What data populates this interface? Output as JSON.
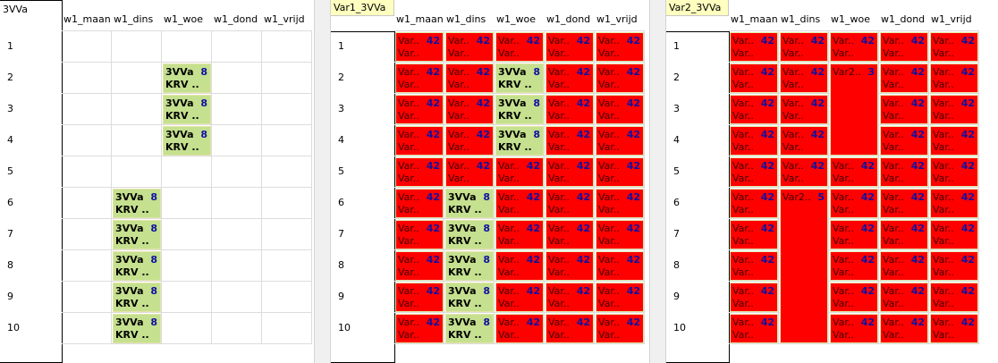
{
  "panels": [
    {
      "title": "3VVa",
      "columns": [
        "w1_maan",
        "w1_dins",
        "w1_woe",
        "w1_dond",
        "w1_vrijd"
      ],
      "rows": [
        {
          "label": 1,
          "cells": [
            null,
            null,
            null,
            null,
            null
          ]
        },
        {
          "label": 2,
          "cells": [
            null,
            null,
            {
              "top": "3VVa",
              "num": 8,
              "bottom": "KRV ..",
              "color": "#c5e08e"
            },
            null,
            null
          ]
        },
        {
          "label": 3,
          "cells": [
            null,
            null,
            {
              "top": "3VVa",
              "num": 8,
              "bottom": "KRV ..",
              "color": "#c5e08e"
            },
            null,
            null
          ]
        },
        {
          "label": 4,
          "cells": [
            null,
            null,
            {
              "top": "3VVa",
              "num": 8,
              "bottom": "KRV ..",
              "color": "#c5e08e"
            },
            null,
            null
          ]
        },
        {
          "label": 5,
          "cells": [
            null,
            null,
            null,
            null,
            null
          ]
        },
        {
          "label": 6,
          "cells": [
            null,
            {
              "top": "3VVa",
              "num": 8,
              "bottom": "KRV ..",
              "color": "#c5e08e"
            },
            null,
            null,
            null
          ]
        },
        {
          "label": 7,
          "cells": [
            null,
            {
              "top": "3VVa",
              "num": 8,
              "bottom": "KRV ..",
              "color": "#c5e08e"
            },
            null,
            null,
            null
          ]
        },
        {
          "label": 8,
          "cells": [
            null,
            {
              "top": "3VVa",
              "num": 8,
              "bottom": "KRV ..",
              "color": "#c5e08e"
            },
            null,
            null,
            null
          ]
        },
        {
          "label": 9,
          "cells": [
            null,
            {
              "top": "3VVa",
              "num": 8,
              "bottom": "KRV ..",
              "color": "#c5e08e"
            },
            null,
            null,
            null
          ]
        },
        {
          "label": 10,
          "cells": [
            null,
            {
              "top": "3VVa",
              "num": 8,
              "bottom": "KRV ..",
              "color": "#c5e08e"
            },
            null,
            null,
            null
          ]
        }
      ]
    },
    {
      "title": "Var1_3VVa",
      "columns": [
        "w1_maan",
        "w1_dins",
        "w1_woe",
        "w1_dond",
        "w1_vrijd"
      ],
      "rows": [
        {
          "label": 1,
          "cells": [
            {
              "top": "Var..",
              "num": 42,
              "bottom": "Var..",
              "color": "#ff0000"
            },
            {
              "top": "Var..",
              "num": 42,
              "bottom": "Var..",
              "color": "#ff0000"
            },
            {
              "top": "Var..",
              "num": 42,
              "bottom": "Var..",
              "color": "#ff0000"
            },
            {
              "top": "Var..",
              "num": 42,
              "bottom": "Var..",
              "color": "#ff0000"
            },
            {
              "top": "Var..",
              "num": 42,
              "bottom": "Var..",
              "color": "#ff0000"
            }
          ]
        },
        {
          "label": 2,
          "cells": [
            {
              "top": "Var..",
              "num": 42,
              "bottom": "Var..",
              "color": "#ff0000"
            },
            {
              "top": "Var..",
              "num": 42,
              "bottom": "Var..",
              "color": "#ff0000"
            },
            {
              "top": "3VVa",
              "num": 8,
              "bottom": "KRV ..",
              "color": "#c5e08e"
            },
            {
              "top": "Var..",
              "num": 42,
              "bottom": "Var..",
              "color": "#ff0000"
            },
            {
              "top": "Var..",
              "num": 42,
              "bottom": "Var..",
              "color": "#ff0000"
            }
          ]
        },
        {
          "label": 3,
          "cells": [
            {
              "top": "Var..",
              "num": 42,
              "bottom": "Var..",
              "color": "#ff0000"
            },
            {
              "top": "Var..",
              "num": 42,
              "bottom": "Var..",
              "color": "#ff0000"
            },
            {
              "top": "3VVa",
              "num": 8,
              "bottom": "KRV ..",
              "color": "#c5e08e"
            },
            {
              "top": "Var..",
              "num": 42,
              "bottom": "Var..",
              "color": "#ff0000"
            },
            {
              "top": "Var..",
              "num": 42,
              "bottom": "Var..",
              "color": "#ff0000"
            }
          ]
        },
        {
          "label": 4,
          "cells": [
            {
              "top": "Var..",
              "num": 42,
              "bottom": "Var..",
              "color": "#ff0000"
            },
            {
              "top": "Var..",
              "num": 42,
              "bottom": "Var..",
              "color": "#ff0000"
            },
            {
              "top": "3VVa",
              "num": 8,
              "bottom": "KRV ..",
              "color": "#c5e08e"
            },
            {
              "top": "Var..",
              "num": 42,
              "bottom": "Var..",
              "color": "#ff0000"
            },
            {
              "top": "Var..",
              "num": 42,
              "bottom": "Var..",
              "color": "#ff0000"
            }
          ]
        },
        {
          "label": 5,
          "cells": [
            {
              "top": "Var..",
              "num": 42,
              "bottom": "Var..",
              "color": "#ff0000"
            },
            {
              "top": "Var..",
              "num": 42,
              "bottom": "Var..",
              "color": "#ff0000"
            },
            {
              "top": "Var..",
              "num": 42,
              "bottom": "Var..",
              "color": "#ff0000"
            },
            {
              "top": "Var..",
              "num": 42,
              "bottom": "Var..",
              "color": "#ff0000"
            },
            {
              "top": "Var..",
              "num": 42,
              "bottom": "Var..",
              "color": "#ff0000"
            }
          ]
        },
        {
          "label": 6,
          "cells": [
            {
              "top": "Var..",
              "num": 42,
              "bottom": "Var..",
              "color": "#ff0000"
            },
            {
              "top": "3VVa",
              "num": 8,
              "bottom": "KRV ..",
              "color": "#c5e08e"
            },
            {
              "top": "Var..",
              "num": 42,
              "bottom": "Var..",
              "color": "#ff0000"
            },
            {
              "top": "Var..",
              "num": 42,
              "bottom": "Var..",
              "color": "#ff0000"
            },
            {
              "top": "Var..",
              "num": 42,
              "bottom": "Var..",
              "color": "#ff0000"
            }
          ]
        },
        {
          "label": 7,
          "cells": [
            {
              "top": "Var..",
              "num": 42,
              "bottom": "Var..",
              "color": "#ff0000"
            },
            {
              "top": "3VVa",
              "num": 8,
              "bottom": "KRV ..",
              "color": "#c5e08e"
            },
            {
              "top": "Var..",
              "num": 42,
              "bottom": "Var..",
              "color": "#ff0000"
            },
            {
              "top": "Var..",
              "num": 42,
              "bottom": "Var..",
              "color": "#ff0000"
            },
            {
              "top": "Var..",
              "num": 42,
              "bottom": "Var..",
              "color": "#ff0000"
            }
          ]
        },
        {
          "label": 8,
          "cells": [
            {
              "top": "Var..",
              "num": 42,
              "bottom": "Var..",
              "color": "#ff0000"
            },
            {
              "top": "3VVa",
              "num": 8,
              "bottom": "KRV ..",
              "color": "#c5e08e"
            },
            {
              "top": "Var..",
              "num": 42,
              "bottom": "Var..",
              "color": "#ff0000"
            },
            {
              "top": "Var..",
              "num": 42,
              "bottom": "Var..",
              "color": "#ff0000"
            },
            {
              "top": "Var..",
              "num": 42,
              "bottom": "Var..",
              "color": "#ff0000"
            }
          ]
        },
        {
          "label": 9,
          "cells": [
            {
              "top": "Var..",
              "num": 42,
              "bottom": "Var..",
              "color": "#ff0000"
            },
            {
              "top": "3VVa",
              "num": 8,
              "bottom": "KRV ..",
              "color": "#c5e08e"
            },
            {
              "top": "Var..",
              "num": 42,
              "bottom": "Var..",
              "color": "#ff0000"
            },
            {
              "top": "Var..",
              "num": 42,
              "bottom": "Var..",
              "color": "#ff0000"
            },
            {
              "top": "Var..",
              "num": 42,
              "bottom": "Var..",
              "color": "#ff0000"
            }
          ]
        },
        {
          "label": 10,
          "cells": [
            {
              "top": "Var..",
              "num": 42,
              "bottom": "Var..",
              "color": "#ff0000"
            },
            {
              "top": "3VVa",
              "num": 8,
              "bottom": "KRV ..",
              "color": "#c5e08e"
            },
            {
              "top": "Var..",
              "num": 42,
              "bottom": "Var..",
              "color": "#ff0000"
            },
            {
              "top": "Var..",
              "num": 42,
              "bottom": "Var..",
              "color": "#ff0000"
            },
            {
              "top": "Var..",
              "num": 42,
              "bottom": "Var..",
              "color": "#ff0000"
            }
          ]
        }
      ]
    },
    {
      "title": "Var2_3VVa",
      "columns": [
        "w1_maan",
        "w1_dins",
        "w1_woe",
        "w1_dond",
        "w1_vrijd"
      ],
      "rows": [
        {
          "label": 1,
          "cells": [
            {
              "top": "Var..",
              "num": 42,
              "bottom": "Var..",
              "color": "#ff0000"
            },
            {
              "top": "Var..",
              "num": 42,
              "bottom": "Var..",
              "color": "#ff0000"
            },
            {
              "top": "Var..",
              "num": 42,
              "bottom": "Var..",
              "color": "#ff0000"
            },
            {
              "top": "Var..",
              "num": 42,
              "bottom": "Var..",
              "color": "#ff0000"
            },
            {
              "top": "Var..",
              "num": 42,
              "bottom": "Var..",
              "color": "#ff0000"
            }
          ]
        },
        {
          "label": 2,
          "cells": [
            {
              "top": "Var..",
              "num": 42,
              "bottom": "Var..",
              "color": "#ff0000"
            },
            {
              "top": "Var..",
              "num": 42,
              "bottom": "Var..",
              "color": "#ff0000"
            },
            {
              "top": "Var2..",
              "num": 3,
              "rowspan": 3,
              "color": "#ff0000"
            },
            {
              "top": "Var..",
              "num": 42,
              "bottom": "Var..",
              "color": "#ff0000"
            },
            {
              "top": "Var..",
              "num": 42,
              "bottom": "Var..",
              "color": "#ff0000"
            }
          ]
        },
        {
          "label": 3,
          "cells": [
            {
              "top": "Var..",
              "num": 42,
              "bottom": "Var..",
              "color": "#ff0000"
            },
            {
              "top": "Var..",
              "num": 42,
              "bottom": "Var..",
              "color": "#ff0000"
            },
            null,
            {
              "top": "Var..",
              "num": 42,
              "bottom": "Var..",
              "color": "#ff0000"
            },
            {
              "top": "Var..",
              "num": 42,
              "bottom": "Var..",
              "color": "#ff0000"
            }
          ]
        },
        {
          "label": 4,
          "cells": [
            {
              "top": "Var..",
              "num": 42,
              "bottom": "Var..",
              "color": "#ff0000"
            },
            {
              "top": "Var..",
              "num": 42,
              "bottom": "Var..",
              "color": "#ff0000"
            },
            null,
            {
              "top": "Var..",
              "num": 42,
              "bottom": "Var..",
              "color": "#ff0000"
            },
            {
              "top": "Var..",
              "num": 42,
              "bottom": "Var..",
              "color": "#ff0000"
            }
          ]
        },
        {
          "label": 5,
          "cells": [
            {
              "top": "Var..",
              "num": 42,
              "bottom": "Var..",
              "color": "#ff0000"
            },
            {
              "top": "Var..",
              "num": 42,
              "bottom": "Var..",
              "color": "#ff0000"
            },
            {
              "top": "Var..",
              "num": 42,
              "bottom": "Var..",
              "color": "#ff0000"
            },
            {
              "top": "Var..",
              "num": 42,
              "bottom": "Var..",
              "color": "#ff0000"
            },
            {
              "top": "Var..",
              "num": 42,
              "bottom": "Var..",
              "color": "#ff0000"
            }
          ]
        },
        {
          "label": 6,
          "cells": [
            {
              "top": "Var..",
              "num": 42,
              "bottom": "Var..",
              "color": "#ff0000"
            },
            {
              "top": "Var2..",
              "num": 5,
              "rowspan": 5,
              "color": "#ff0000"
            },
            {
              "top": "Var..",
              "num": 42,
              "bottom": "Var..",
              "color": "#ff0000"
            },
            {
              "top": "Var..",
              "num": 42,
              "bottom": "Var..",
              "color": "#ff0000"
            },
            {
              "top": "Var..",
              "num": 42,
              "bottom": "Var..",
              "color": "#ff0000"
            }
          ]
        },
        {
          "label": 7,
          "cells": [
            {
              "top": "Var..",
              "num": 42,
              "bottom": "Var..",
              "color": "#ff0000"
            },
            null,
            {
              "top": "Var..",
              "num": 42,
              "bottom": "Var..",
              "color": "#ff0000"
            },
            {
              "top": "Var..",
              "num": 42,
              "bottom": "Var..",
              "color": "#ff0000"
            },
            {
              "top": "Var..",
              "num": 42,
              "bottom": "Var..",
              "color": "#ff0000"
            }
          ]
        },
        {
          "label": 8,
          "cells": [
            {
              "top": "Var..",
              "num": 42,
              "bottom": "Var..",
              "color": "#ff0000"
            },
            null,
            {
              "top": "Var..",
              "num": 42,
              "bottom": "Var..",
              "color": "#ff0000"
            },
            {
              "top": "Var..",
              "num": 42,
              "bottom": "Var..",
              "color": "#ff0000"
            },
            {
              "top": "Var..",
              "num": 42,
              "bottom": "Var..",
              "color": "#ff0000"
            }
          ]
        },
        {
          "label": 9,
          "cells": [
            {
              "top": "Var..",
              "num": 42,
              "bottom": "Var..",
              "color": "#ff0000"
            },
            null,
            {
              "top": "Var..",
              "num": 42,
              "bottom": "Var..",
              "color": "#ff0000"
            },
            {
              "top": "Var..",
              "num": 42,
              "bottom": "Var..",
              "color": "#ff0000"
            },
            {
              "top": "Var..",
              "num": 42,
              "bottom": "Var..",
              "color": "#ff0000"
            }
          ]
        },
        {
          "label": 10,
          "cells": [
            {
              "top": "Var..",
              "num": 42,
              "bottom": "Var..",
              "color": "#ff0000"
            },
            null,
            {
              "top": "Var..",
              "num": 42,
              "bottom": "Var..",
              "color": "#ff0000"
            },
            {
              "top": "Var..",
              "num": 42,
              "bottom": "Var..",
              "color": "#ff0000"
            },
            {
              "top": "Var..",
              "num": 42,
              "bottom": "Var..",
              "color": "#ff0000"
            }
          ]
        }
      ]
    }
  ]
}
